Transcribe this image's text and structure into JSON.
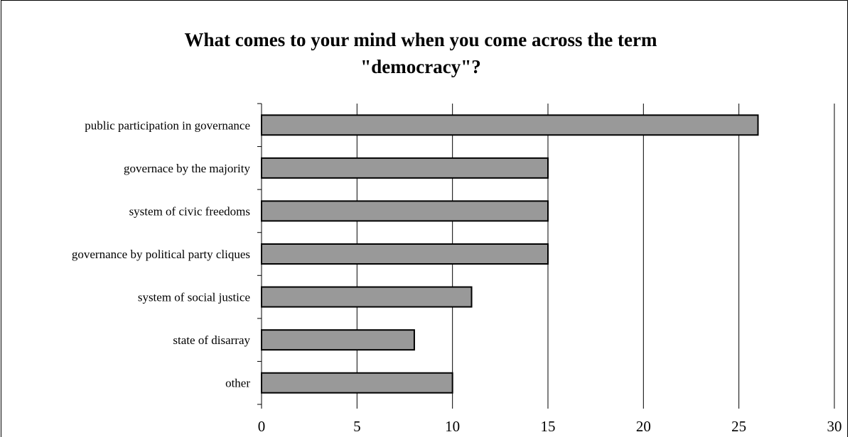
{
  "chart_data": {
    "type": "bar",
    "orientation": "horizontal",
    "title": "What comes to your mind when you come across the term \"democracy\"?",
    "categories": [
      "public participation in governance",
      "governace by the majority",
      "system of civic freedoms",
      "governance by political party cliques",
      "system of social justice",
      "state of disarray",
      "other"
    ],
    "values": [
      26,
      15,
      15,
      15,
      11,
      8,
      10
    ],
    "xlim": [
      0,
      30
    ],
    "xticks": [
      0,
      5,
      10,
      15,
      20,
      25,
      30
    ],
    "grid": true,
    "legend": "none",
    "bar_color": "#999999",
    "bar_edge_color": "#000000"
  }
}
